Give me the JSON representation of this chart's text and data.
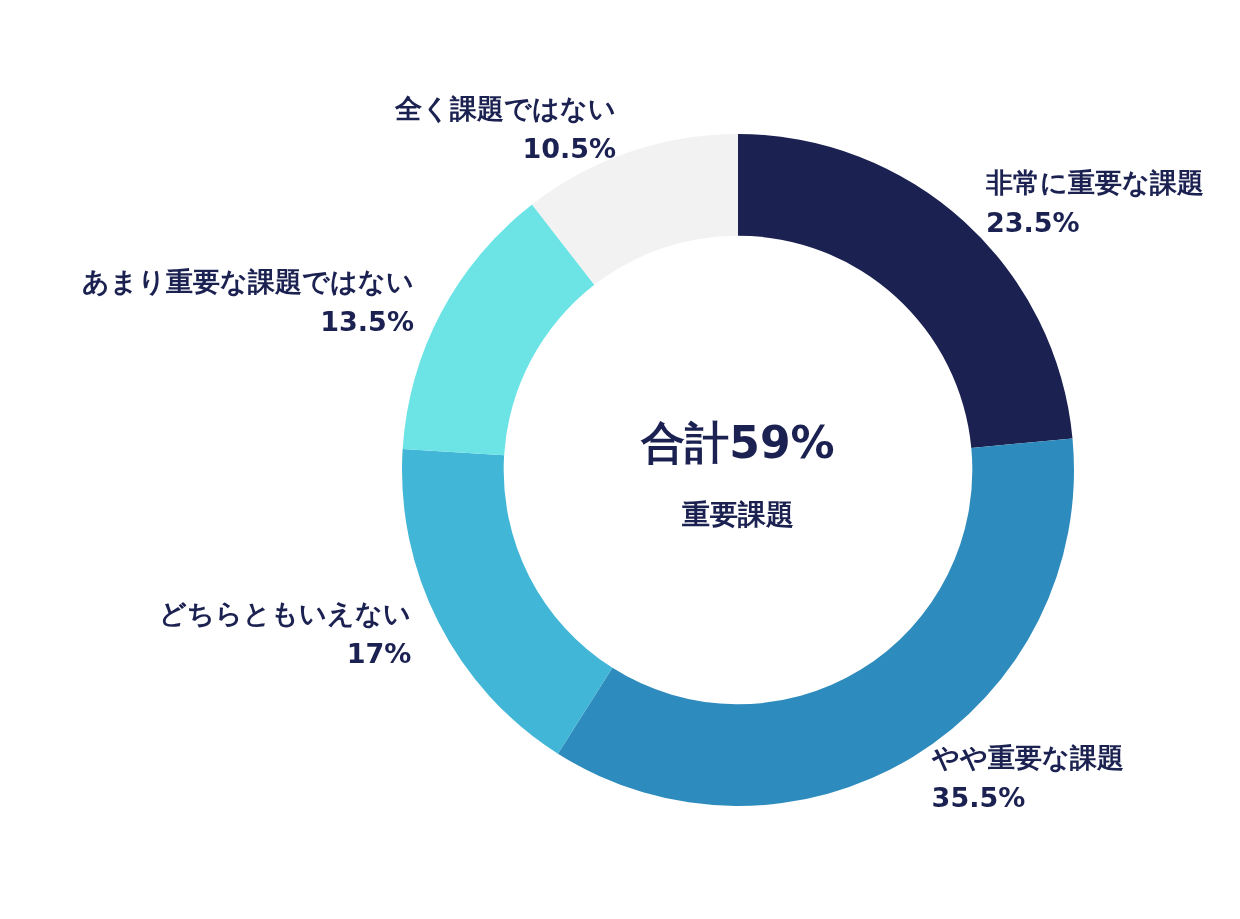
{
  "chart_data": {
    "type": "donut",
    "categories": [
      "非常に重要な課題",
      "やや重要な課題",
      "どちらともいえない",
      "あまり重要な課題ではない",
      "全く課題ではない"
    ],
    "values": [
      23.5,
      35.5,
      17,
      13.5,
      10.5
    ],
    "value_labels": [
      "23.5%",
      "35.5%",
      "17%",
      "13.5%",
      "10.5%"
    ],
    "colors": [
      "#1b2150",
      "#2e8bbd",
      "#42b6d6",
      "#6ce4e6",
      "#f2f2f2"
    ],
    "annotations": [
      "合計59%",
      "重要課題"
    ],
    "legend": false
  }
}
